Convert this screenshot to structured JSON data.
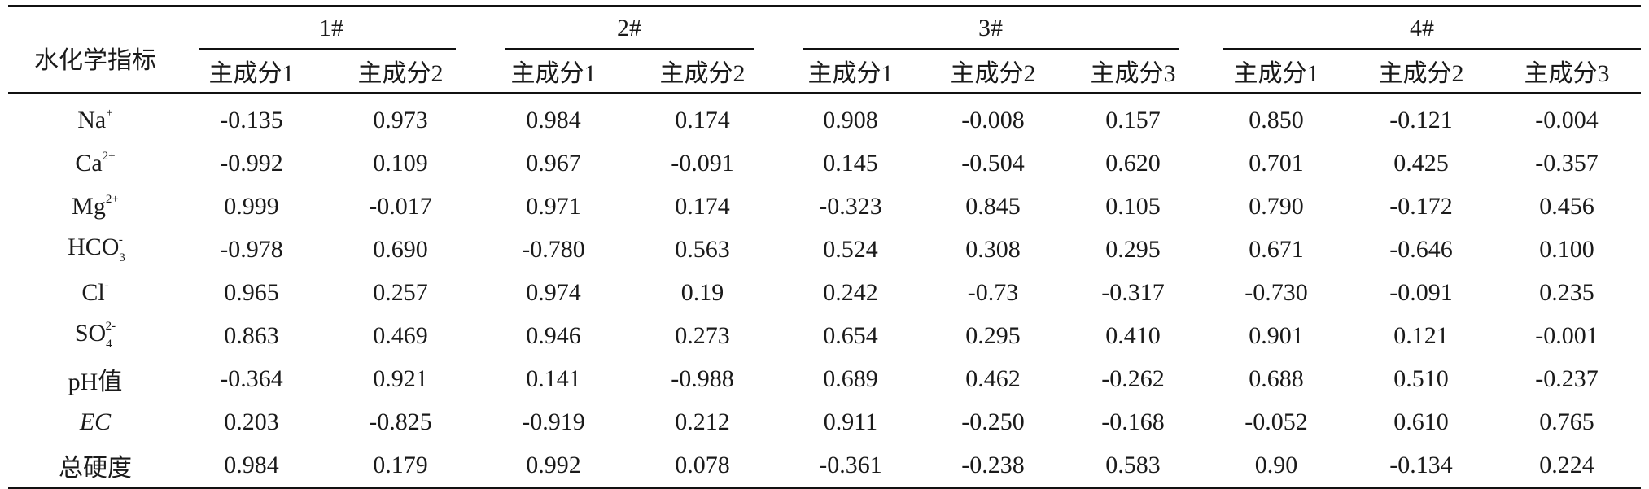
{
  "table": {
    "indicator_header": "水化学指标",
    "groups": [
      {
        "label": "1#",
        "columns": [
          "主成分1",
          "主成分2"
        ]
      },
      {
        "label": "2#",
        "columns": [
          "主成分1",
          "主成分2"
        ]
      },
      {
        "label": "3#",
        "columns": [
          "主成分1",
          "主成分2",
          "主成分3"
        ]
      },
      {
        "label": "4#",
        "columns": [
          "主成分1",
          "主成分2",
          "主成分3"
        ]
      }
    ],
    "rows": [
      {
        "label": "Na",
        "sup": "+",
        "sub": "",
        "values": [
          "-0.135",
          "0.973",
          "0.984",
          "0.174",
          "0.908",
          "-0.008",
          "0.157",
          "0.850",
          "-0.121",
          "-0.004"
        ]
      },
      {
        "label": "Ca",
        "sup": "2+",
        "sub": "",
        "values": [
          "-0.992",
          "0.109",
          "0.967",
          "-0.091",
          "0.145",
          "-0.504",
          "0.620",
          "0.701",
          "0.425",
          "-0.357"
        ]
      },
      {
        "label": "Mg",
        "sup": "2+",
        "sub": "",
        "values": [
          "0.999",
          "-0.017",
          "0.971",
          "0.174",
          "-0.323",
          "0.845",
          "0.105",
          "0.790",
          "-0.172",
          "0.456"
        ]
      },
      {
        "label": "HCO",
        "sub": "3",
        "sup": "-",
        "values": [
          "-0.978",
          "0.690",
          "-0.780",
          "0.563",
          "0.524",
          "0.308",
          "0.295",
          "0.671",
          "-0.646",
          "0.100"
        ]
      },
      {
        "label": "Cl",
        "sup": "-",
        "sub": "",
        "values": [
          "0.965",
          "0.257",
          "0.974",
          "0.19",
          "0.242",
          "-0.73",
          "-0.317",
          "-0.730",
          "-0.091",
          "0.235"
        ]
      },
      {
        "label": "SO",
        "sub": "4",
        "sup": "2-",
        "values": [
          "0.863",
          "0.469",
          "0.946",
          "0.273",
          "0.654",
          "0.295",
          "0.410",
          "0.901",
          "0.121",
          "-0.001"
        ]
      },
      {
        "label": "pH值",
        "sup": "",
        "sub": "",
        "values": [
          "-0.364",
          "0.921",
          "0.141",
          "-0.988",
          "0.689",
          "0.462",
          "-0.262",
          "0.688",
          "0.510",
          "-0.237"
        ]
      },
      {
        "label": "EC",
        "sup": "",
        "sub": "",
        "italic": true,
        "values": [
          "0.203",
          "-0.825",
          "-0.919",
          "0.212",
          "0.911",
          "-0.250",
          "-0.168",
          "-0.052",
          "0.610",
          "0.765"
        ]
      },
      {
        "label": "总硬度",
        "sup": "",
        "sub": "",
        "values": [
          "0.984",
          "0.179",
          "0.992",
          "0.078",
          "-0.361",
          "-0.238",
          "0.583",
          "0.90",
          "-0.134",
          "0.224"
        ]
      }
    ]
  }
}
